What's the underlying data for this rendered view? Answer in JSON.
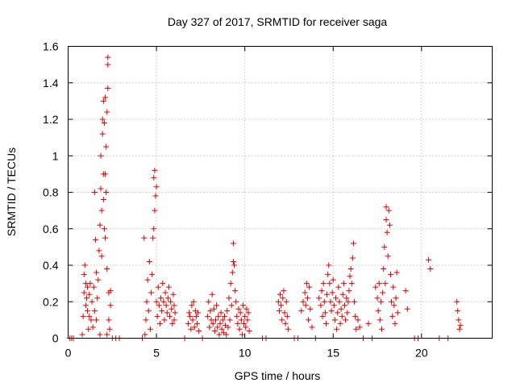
{
  "chart_data": {
    "type": "scatter",
    "title": "Day 327 of 2017, SRMTID for receiver saga",
    "xlabel": "GPS time / hours",
    "ylabel": "SRMTID / TECUs",
    "xlim": [
      0,
      24
    ],
    "ylim": [
      0,
      1.6
    ],
    "xticks": [
      0,
      5,
      10,
      15,
      20
    ],
    "xtick_labels": [
      "0",
      "5",
      "10",
      "15",
      "20"
    ],
    "yticks": [
      0,
      0.2,
      0.4,
      0.6,
      0.8,
      1.0,
      1.2,
      1.4,
      1.6
    ],
    "ytick_labels": [
      "0",
      "0.2",
      "0.4",
      "0.6",
      "0.8",
      "1",
      "1.2",
      "1.4",
      "1.6"
    ],
    "grid": true,
    "marker": "+",
    "color": "#dd0000",
    "series": [
      {
        "name": "SRMTID",
        "points": [
          [
            0.1,
            0
          ],
          [
            0.2,
            0
          ],
          [
            0.3,
            0
          ],
          [
            0.8,
            0.02
          ],
          [
            0.85,
            0.12
          ],
          [
            0.9,
            0.25
          ],
          [
            0.9,
            0.35
          ],
          [
            0.95,
            0.4
          ],
          [
            1.0,
            0.18
          ],
          [
            1.0,
            0.3
          ],
          [
            1.05,
            0.22
          ],
          [
            1.1,
            0.28
          ],
          [
            1.1,
            0.15
          ],
          [
            1.15,
            0.05
          ],
          [
            1.2,
            0.12
          ],
          [
            1.2,
            0.24
          ],
          [
            1.25,
            0.3
          ],
          [
            1.3,
            0.1
          ],
          [
            1.35,
            0.2
          ],
          [
            1.4,
            0.06
          ],
          [
            1.45,
            0.28
          ],
          [
            1.5,
            0.15
          ],
          [
            1.5,
            0.8
          ],
          [
            1.55,
            0.54
          ],
          [
            1.6,
            0.36
          ],
          [
            1.6,
            0.1
          ],
          [
            1.65,
            0.22
          ],
          [
            1.7,
            0.32
          ],
          [
            1.75,
            0.48
          ],
          [
            1.8,
            0.62
          ],
          [
            1.8,
            0.02
          ],
          [
            1.85,
            0.82
          ],
          [
            1.85,
            1.0
          ],
          [
            1.9,
            0.7
          ],
          [
            1.9,
            0.45
          ],
          [
            1.95,
            1.12
          ],
          [
            1.95,
            1.2
          ],
          [
            2.0,
            0.76
          ],
          [
            2.0,
            0.9
          ],
          [
            2.0,
            1.3
          ],
          [
            2.05,
            0.6
          ],
          [
            2.05,
            1.18
          ],
          [
            2.1,
            0.9
          ],
          [
            2.1,
            0.55
          ],
          [
            2.1,
            1.32
          ],
          [
            2.15,
            1.05
          ],
          [
            2.15,
            0.8
          ],
          [
            2.2,
            1.24
          ],
          [
            2.2,
            0.38
          ],
          [
            2.2,
            0.02
          ],
          [
            2.25,
            1.37
          ],
          [
            2.25,
            1.54
          ],
          [
            2.25,
            1.5
          ],
          [
            2.3,
            0.25
          ],
          [
            2.3,
            0.1
          ],
          [
            2.35,
            0.05
          ],
          [
            2.4,
            0.18
          ],
          [
            2.4,
            0.26
          ],
          [
            2.5,
            0
          ],
          [
            2.7,
            0
          ],
          [
            2.9,
            0
          ],
          [
            4.2,
            0
          ],
          [
            4.3,
            0.55
          ],
          [
            4.35,
            0.02
          ],
          [
            4.4,
            0.1
          ],
          [
            4.45,
            0.2
          ],
          [
            4.5,
            0.32
          ],
          [
            4.55,
            0.15
          ],
          [
            4.6,
            0.42
          ],
          [
            4.65,
            0.05
          ],
          [
            4.7,
            0.25
          ],
          [
            4.75,
            0.35
          ],
          [
            4.8,
            0.55
          ],
          [
            4.85,
            0.6
          ],
          [
            4.85,
            0.88
          ],
          [
            4.9,
            0.7
          ],
          [
            4.9,
            0.92
          ],
          [
            4.95,
            0.78
          ],
          [
            5.0,
            0.83
          ],
          [
            5.0,
            0.2
          ],
          [
            5.05,
            0.12
          ],
          [
            5.1,
            0.28
          ],
          [
            5.15,
            0.18
          ],
          [
            5.2,
            0.08
          ],
          [
            5.25,
            0.22
          ],
          [
            5.3,
            0.15
          ],
          [
            5.35,
            0.3
          ],
          [
            5.4,
            0.2
          ],
          [
            5.45,
            0.1
          ],
          [
            5.5,
            0.25
          ],
          [
            5.55,
            0.18
          ],
          [
            5.6,
            0.14
          ],
          [
            5.65,
            0.22
          ],
          [
            5.7,
            0.28
          ],
          [
            5.75,
            0.12
          ],
          [
            5.8,
            0.2
          ],
          [
            5.85,
            0.16
          ],
          [
            5.9,
            0.08
          ],
          [
            5.95,
            0.24
          ],
          [
            6.0,
            0.18
          ],
          [
            6.0,
            0.1
          ],
          [
            6.05,
            0.14
          ],
          [
            6.6,
            0
          ],
          [
            6.8,
            0.08
          ],
          [
            6.85,
            0.14
          ],
          [
            6.9,
            0.12
          ],
          [
            6.95,
            0.05
          ],
          [
            7.0,
            0.18
          ],
          [
            7.05,
            0.1
          ],
          [
            7.1,
            0.2
          ],
          [
            7.15,
            0.06
          ],
          [
            7.2,
            0.15
          ],
          [
            7.25,
            0.12
          ],
          [
            7.3,
            0.08
          ],
          [
            7.35,
            0.14
          ],
          [
            7.4,
            0.04
          ],
          [
            7.6,
            0
          ],
          [
            7.9,
            0.12
          ],
          [
            7.95,
            0.2
          ],
          [
            8.0,
            0.06
          ],
          [
            8.05,
            0.15
          ],
          [
            8.1,
            0.1
          ],
          [
            8.15,
            0.24
          ],
          [
            8.2,
            0.08
          ],
          [
            8.25,
            0.16
          ],
          [
            8.3,
            0.04
          ],
          [
            8.35,
            0.1
          ],
          [
            8.4,
            0.18
          ],
          [
            8.45,
            0.06
          ],
          [
            8.5,
            0.12
          ],
          [
            8.55,
            0.02
          ],
          [
            8.6,
            0.08
          ],
          [
            8.65,
            0.14
          ],
          [
            8.7,
            0.05
          ],
          [
            8.75,
            0.1
          ],
          [
            8.8,
            0.03
          ],
          [
            8.85,
            0.12
          ],
          [
            8.9,
            0.07
          ],
          [
            8.95,
            0.02
          ],
          [
            9.0,
            0.15
          ],
          [
            9.05,
            0.06
          ],
          [
            9.1,
            0.22
          ],
          [
            9.15,
            0.1
          ],
          [
            9.2,
            0.3
          ],
          [
            9.25,
            0.18
          ],
          [
            9.3,
            0.36
          ],
          [
            9.35,
            0.42
          ],
          [
            9.35,
            0.52
          ],
          [
            9.4,
            0.4
          ],
          [
            9.45,
            0.26
          ],
          [
            9.5,
            0.2
          ],
          [
            9.55,
            0.12
          ],
          [
            9.6,
            0.08
          ],
          [
            9.65,
            0.16
          ],
          [
            9.7,
            0.05
          ],
          [
            9.75,
            0.14
          ],
          [
            9.8,
            0.1
          ],
          [
            9.85,
            0.02
          ],
          [
            9.9,
            0.18
          ],
          [
            9.95,
            0.08
          ],
          [
            10.0,
            0.12
          ],
          [
            10.05,
            0.06
          ],
          [
            10.1,
            0.16
          ],
          [
            10.15,
            0.1
          ],
          [
            10.2,
            0.14
          ],
          [
            10.25,
            0.04
          ],
          [
            11.0,
            0
          ],
          [
            11.2,
            0
          ],
          [
            11.9,
            0.2
          ],
          [
            11.95,
            0.15
          ],
          [
            12.0,
            0.24
          ],
          [
            12.05,
            0.18
          ],
          [
            12.1,
            0.1
          ],
          [
            12.15,
            0.22
          ],
          [
            12.2,
            0.26
          ],
          [
            12.25,
            0.14
          ],
          [
            12.3,
            0.08
          ],
          [
            12.35,
            0.2
          ],
          [
            12.4,
            0.12
          ],
          [
            12.45,
            0.05
          ],
          [
            12.8,
            0
          ],
          [
            13.0,
            0
          ],
          [
            13.2,
            0.15
          ],
          [
            13.3,
            0.2
          ],
          [
            13.4,
            0.25
          ],
          [
            13.45,
            0.18
          ],
          [
            13.5,
            0.3
          ],
          [
            13.55,
            0.22
          ],
          [
            13.6,
            0.1
          ],
          [
            13.65,
            0.28
          ],
          [
            13.7,
            0.16
          ],
          [
            13.8,
            0.06
          ],
          [
            14.0,
            0
          ],
          [
            14.2,
            0.22
          ],
          [
            14.3,
            0.18
          ],
          [
            14.35,
            0.26
          ],
          [
            14.4,
            0.12
          ],
          [
            14.45,
            0.3
          ],
          [
            14.5,
            0.2
          ],
          [
            14.55,
            0.14
          ],
          [
            14.6,
            0.08
          ],
          [
            14.65,
            0.24
          ],
          [
            14.7,
            0.35
          ],
          [
            14.75,
            0.4
          ],
          [
            14.8,
            0.3
          ],
          [
            14.85,
            0.2
          ],
          [
            14.9,
            0.15
          ],
          [
            14.95,
            0.25
          ],
          [
            15.0,
            0.32
          ],
          [
            15.05,
            0.18
          ],
          [
            15.1,
            0.1
          ],
          [
            15.15,
            0.22
          ],
          [
            15.2,
            0.05
          ],
          [
            15.25,
            0.14
          ],
          [
            15.3,
            0.28
          ],
          [
            15.35,
            0.2
          ],
          [
            15.4,
            0.08
          ],
          [
            15.45,
            0.16
          ],
          [
            15.5,
            0.12
          ],
          [
            15.55,
            0.24
          ],
          [
            15.6,
            0.3
          ],
          [
            15.65,
            0.18
          ],
          [
            15.7,
            0.1
          ],
          [
            15.75,
            0.22
          ],
          [
            15.8,
            0.14
          ],
          [
            15.85,
            0.2
          ],
          [
            15.9,
            0.26
          ],
          [
            15.95,
            0.34
          ],
          [
            16.0,
            0.38
          ],
          [
            16.05,
            0.3
          ],
          [
            16.1,
            0.44
          ],
          [
            16.15,
            0.52
          ],
          [
            16.2,
            0.2
          ],
          [
            16.25,
            0.12
          ],
          [
            16.3,
            0.05
          ],
          [
            16.4,
            0.1
          ],
          [
            16.5,
            0.06
          ],
          [
            16.7,
            0
          ],
          [
            17.0,
            0.08
          ],
          [
            17.2,
            0
          ],
          [
            17.4,
            0.28
          ],
          [
            17.5,
            0.22
          ],
          [
            17.55,
            0.15
          ],
          [
            17.6,
            0.3
          ],
          [
            17.65,
            0.1
          ],
          [
            17.7,
            0.2
          ],
          [
            17.75,
            0.05
          ],
          [
            17.8,
            0.25
          ],
          [
            17.85,
            0.38
          ],
          [
            17.9,
            0.5
          ],
          [
            17.95,
            0.3
          ],
          [
            18.0,
            0.72
          ],
          [
            18.0,
            0.65
          ],
          [
            18.05,
            0.58
          ],
          [
            18.1,
            0.45
          ],
          [
            18.15,
            0.7
          ],
          [
            18.2,
            0.62
          ],
          [
            18.25,
            0.35
          ],
          [
            18.3,
            0.2
          ],
          [
            18.35,
            0.12
          ],
          [
            18.4,
            0.28
          ],
          [
            18.45,
            0.18
          ],
          [
            18.5,
            0.08
          ],
          [
            18.55,
            0.22
          ],
          [
            18.6,
            0.36
          ],
          [
            18.65,
            0.14
          ],
          [
            19.1,
            0.26
          ],
          [
            19.2,
            0.16
          ],
          [
            19.6,
            0
          ],
          [
            19.8,
            0
          ],
          [
            20.4,
            0.43
          ],
          [
            20.5,
            0.38
          ],
          [
            21.0,
            0
          ],
          [
            21.5,
            0
          ],
          [
            22.0,
            0.2
          ],
          [
            22.05,
            0.15
          ],
          [
            22.1,
            0.1
          ],
          [
            22.15,
            0.05
          ],
          [
            22.2,
            0.07
          ]
        ]
      }
    ]
  }
}
